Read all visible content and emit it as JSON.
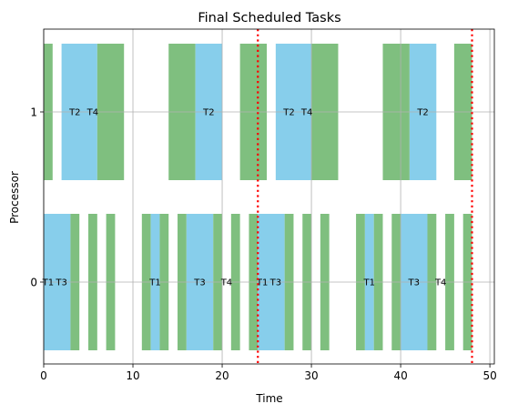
{
  "chart_data": {
    "type": "gantt",
    "title": "Final Scheduled Tasks",
    "xlabel": "Time",
    "ylabel": "Processor",
    "xlim": [
      0,
      50.5
    ],
    "xticks": [
      0,
      10,
      20,
      30,
      40,
      50
    ],
    "yticks": [
      0,
      1
    ],
    "grid": true,
    "colors": {
      "busy": "#87CEEB",
      "idle": "#7FBF7F",
      "deadline": "#FF0000"
    },
    "deadlines": [
      24,
      48
    ],
    "processors": [
      {
        "processor": 1,
        "bars": [
          {
            "start": 0,
            "end": 1,
            "color": "idle"
          },
          {
            "start": 2,
            "end": 6,
            "color": "busy"
          },
          {
            "start": 6,
            "end": 9,
            "color": "idle"
          },
          {
            "start": 14,
            "end": 17,
            "color": "idle"
          },
          {
            "start": 17,
            "end": 20,
            "color": "busy"
          },
          {
            "start": 22,
            "end": 25,
            "color": "idle"
          },
          {
            "start": 26,
            "end": 30,
            "color": "busy"
          },
          {
            "start": 30,
            "end": 33,
            "color": "idle"
          },
          {
            "start": 38,
            "end": 41,
            "color": "idle"
          },
          {
            "start": 41,
            "end": 44,
            "color": "busy"
          },
          {
            "start": 46,
            "end": 48,
            "color": "idle"
          }
        ],
        "labels": [
          {
            "x": 3.5,
            "text": "T2"
          },
          {
            "x": 5.5,
            "text": "T4"
          },
          {
            "x": 18.5,
            "text": "T2"
          },
          {
            "x": 27.5,
            "text": "T2"
          },
          {
            "x": 29.5,
            "text": "T4"
          },
          {
            "x": 42.5,
            "text": "T2"
          }
        ]
      },
      {
        "processor": 0,
        "bars": [
          {
            "start": 0,
            "end": 3,
            "color": "busy"
          },
          {
            "start": 3,
            "end": 4,
            "color": "idle"
          },
          {
            "start": 5,
            "end": 6,
            "color": "idle"
          },
          {
            "start": 7,
            "end": 8,
            "color": "idle"
          },
          {
            "start": 11,
            "end": 12,
            "color": "idle"
          },
          {
            "start": 12,
            "end": 13,
            "color": "busy"
          },
          {
            "start": 13,
            "end": 14,
            "color": "idle"
          },
          {
            "start": 15,
            "end": 16,
            "color": "idle"
          },
          {
            "start": 16,
            "end": 19,
            "color": "busy"
          },
          {
            "start": 19,
            "end": 20,
            "color": "idle"
          },
          {
            "start": 21,
            "end": 22,
            "color": "idle"
          },
          {
            "start": 23,
            "end": 24,
            "color": "idle"
          },
          {
            "start": 24,
            "end": 27,
            "color": "busy"
          },
          {
            "start": 27,
            "end": 28,
            "color": "idle"
          },
          {
            "start": 29,
            "end": 30,
            "color": "idle"
          },
          {
            "start": 31,
            "end": 32,
            "color": "idle"
          },
          {
            "start": 35,
            "end": 36,
            "color": "idle"
          },
          {
            "start": 36,
            "end": 37,
            "color": "busy"
          },
          {
            "start": 37,
            "end": 38,
            "color": "idle"
          },
          {
            "start": 39,
            "end": 40,
            "color": "idle"
          },
          {
            "start": 40,
            "end": 43,
            "color": "busy"
          },
          {
            "start": 43,
            "end": 44,
            "color": "idle"
          },
          {
            "start": 45,
            "end": 46,
            "color": "idle"
          },
          {
            "start": 47,
            "end": 48,
            "color": "idle"
          }
        ],
        "labels": [
          {
            "x": 0.5,
            "text": "T1"
          },
          {
            "x": 2.0,
            "text": "T3"
          },
          {
            "x": 12.5,
            "text": "T1"
          },
          {
            "x": 17.5,
            "text": "T3"
          },
          {
            "x": 20.5,
            "text": "T4"
          },
          {
            "x": 24.5,
            "text": "T1"
          },
          {
            "x": 26.0,
            "text": "T3"
          },
          {
            "x": 36.5,
            "text": "T1"
          },
          {
            "x": 41.5,
            "text": "T3"
          },
          {
            "x": 44.5,
            "text": "T4"
          }
        ]
      }
    ]
  }
}
